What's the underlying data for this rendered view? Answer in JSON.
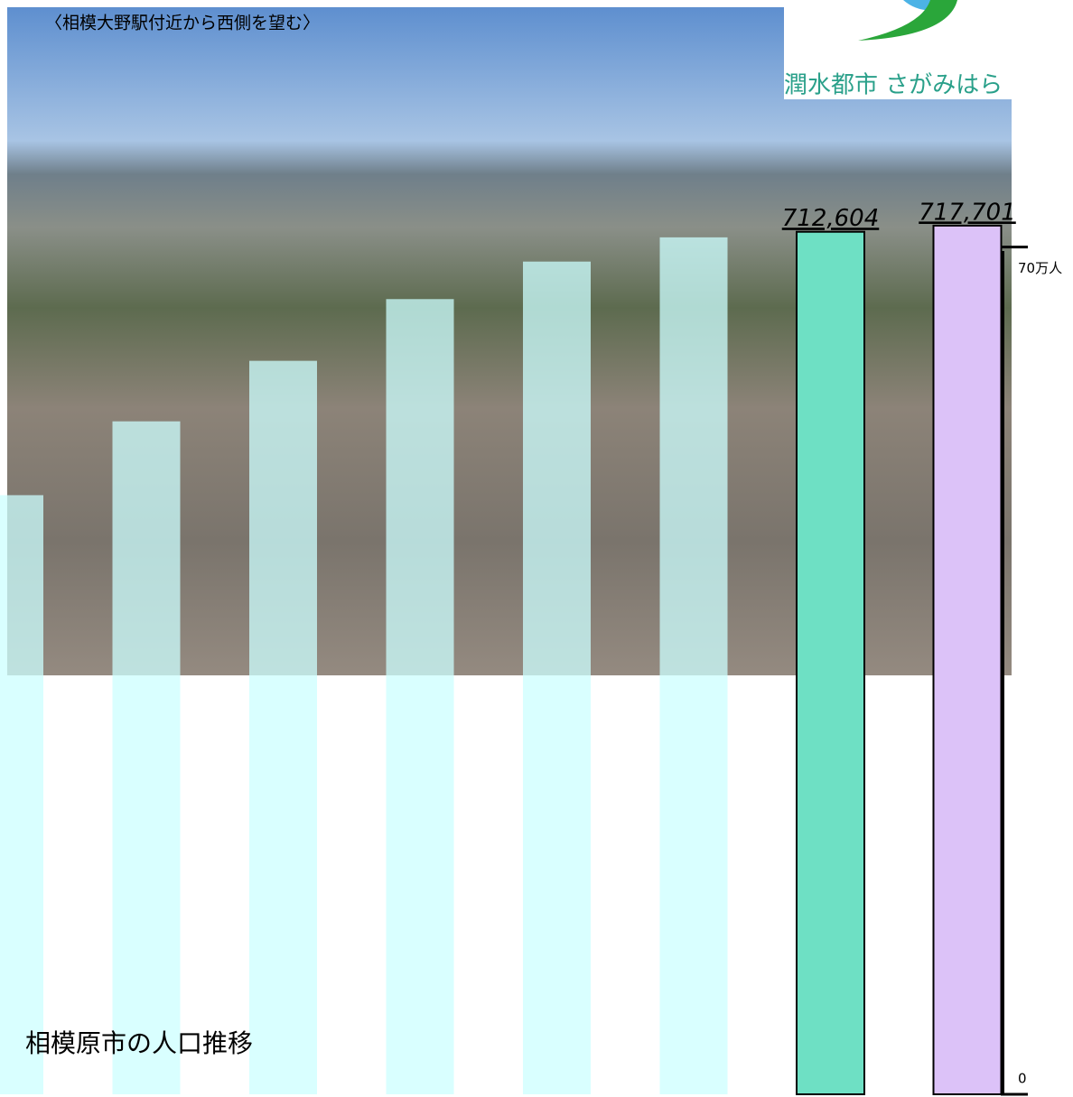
{
  "chart_data": {
    "type": "bar",
    "title": "相模原市の人口推移",
    "annotations": [
      "〈相模大野駅付近から西側を望む〉",
      "潤水都市 さがみはら"
    ],
    "categories": [
      null,
      null,
      null,
      null,
      null,
      null,
      null,
      null
    ],
    "values": [
      495000,
      556000,
      606000,
      657000,
      688000,
      708000,
      712604,
      717701
    ],
    "value_labels": [
      null,
      null,
      null,
      null,
      null,
      null,
      "712,604",
      "717,701"
    ],
    "colors": [
      "#ccffff",
      "#ccffff",
      "#ccffff",
      "#ccffff",
      "#ccffff",
      "#ccffff",
      "#6ee0c4",
      "#dcc2f8"
    ],
    "ylim": [
      0,
      740000
    ],
    "yticks": [
      0,
      {
        "value": 700000,
        "label": "70万人"
      }
    ]
  }
}
